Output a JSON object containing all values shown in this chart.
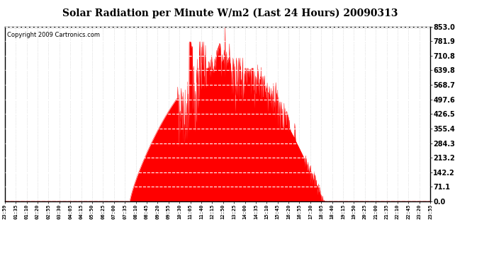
{
  "title": "Solar Radiation per Minute W/m2 (Last 24 Hours) 20090313",
  "copyright_text": "Copyright 2009 Cartronics.com",
  "bg_color": "#ffffff",
  "plot_bg_color": "#ffffff",
  "fill_color": "#ff0000",
  "line_color": "#ff0000",
  "dashed_line_color": "#ff0000",
  "grid_color": "#c8c8c8",
  "dashed_hgrid_color": "#ffffff",
  "ymin": 0.0,
  "ymax": 853.0,
  "yticks": [
    0.0,
    71.1,
    142.2,
    213.2,
    284.3,
    355.4,
    426.5,
    497.6,
    568.7,
    639.8,
    710.8,
    781.9,
    853.0
  ],
  "xtick_labels": [
    "23:59",
    "01:35",
    "01:10",
    "02:20",
    "02:55",
    "03:30",
    "04:05",
    "04:15",
    "05:50",
    "06:25",
    "07:00",
    "07:35",
    "08:10",
    "08:45",
    "09:20",
    "09:55",
    "10:30",
    "11:05",
    "11:40",
    "12:15",
    "12:50",
    "13:25",
    "14:00",
    "14:35",
    "15:10",
    "15:45",
    "16:20",
    "16:55",
    "17:30",
    "18:05",
    "18:40",
    "19:15",
    "19:50",
    "20:25",
    "21:00",
    "21:35",
    "22:10",
    "22:45",
    "23:20",
    "23:55"
  ],
  "num_points": 1440,
  "title_fontsize": 10,
  "copyright_fontsize": 6,
  "ytick_fontsize": 7,
  "xtick_fontsize": 5
}
